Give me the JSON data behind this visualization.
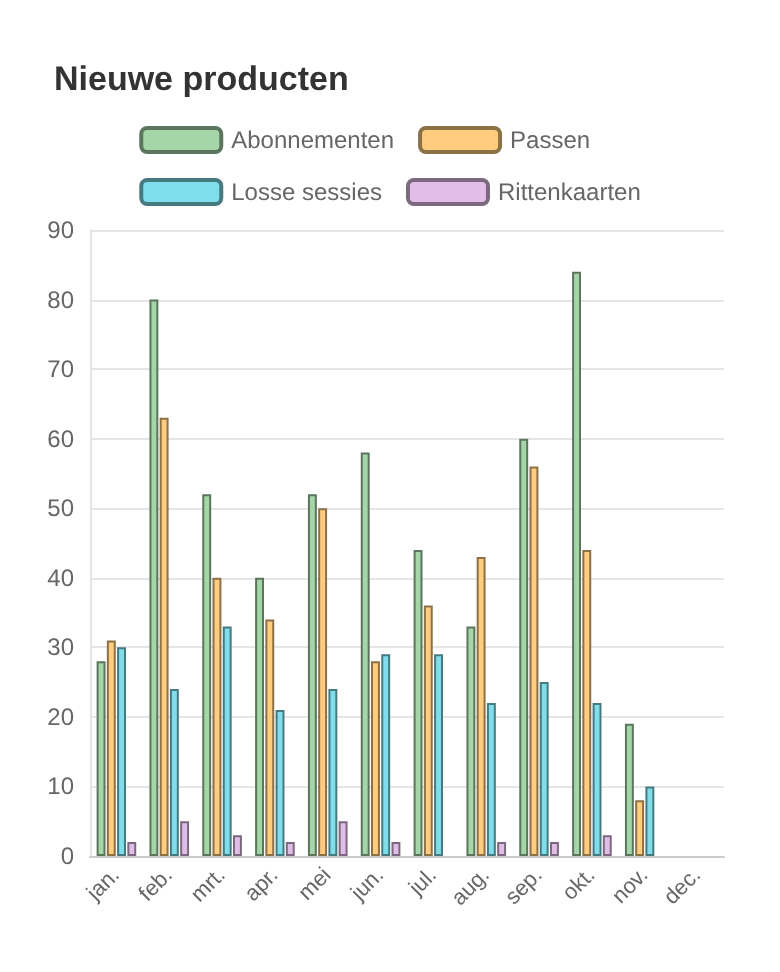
{
  "chart_data": {
    "type": "bar",
    "title": "Nieuwe producten",
    "categories": [
      "jan.",
      "feb.",
      "mrt.",
      "apr.",
      "mei",
      "jun.",
      "jul.",
      "aug.",
      "sep.",
      "okt.",
      "nov.",
      "dec."
    ],
    "series": [
      {
        "name": "Abonnementen",
        "color": "#a5d6a7",
        "values": [
          28,
          80,
          52,
          40,
          52,
          58,
          44,
          33,
          60,
          84,
          19,
          null
        ]
      },
      {
        "name": "Passen",
        "color": "#ffcc80",
        "values": [
          31,
          63,
          40,
          34,
          50,
          28,
          36,
          43,
          56,
          44,
          8,
          null
        ]
      },
      {
        "name": "Losse sessies",
        "color": "#80deea",
        "values": [
          30,
          24,
          33,
          21,
          24,
          29,
          29,
          22,
          25,
          22,
          10,
          null
        ]
      },
      {
        "name": "Rittenkaarten",
        "color": "#e1bee7",
        "values": [
          2,
          5,
          3,
          2,
          5,
          2,
          null,
          2,
          2,
          3,
          null,
          null
        ]
      }
    ],
    "ylim": [
      0,
      90
    ],
    "yticks": [
      0,
      10,
      20,
      30,
      40,
      50,
      60,
      70,
      80,
      90
    ],
    "grid": "y",
    "legend": "top"
  }
}
